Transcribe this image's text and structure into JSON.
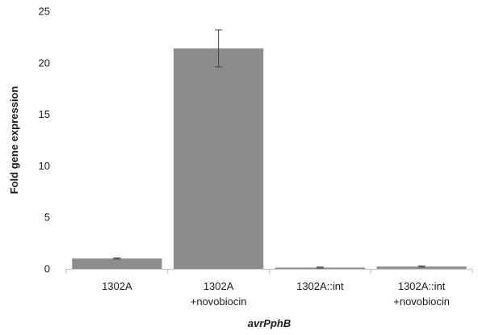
{
  "chart_data": {
    "type": "bar",
    "categories": [
      [
        "1302A"
      ],
      [
        "1302A",
        "+novobiocin"
      ],
      [
        "1302A::int"
      ],
      [
        "1302A::int",
        "+novobiocin"
      ]
    ],
    "values": [
      1.0,
      21.4,
      0.12,
      0.22
    ],
    "error": [
      0.05,
      1.8,
      0.05,
      0.06
    ],
    "title": "",
    "xlabel": "avrPphB",
    "ylabel": "Fold gene expression",
    "ylim": [
      0,
      25
    ],
    "yticks": [
      0,
      5,
      10,
      15,
      20,
      25
    ],
    "grid": false,
    "bar_color": "#8c8c8c",
    "axis_color": "#bfbfbf",
    "error_color": "#404040"
  }
}
